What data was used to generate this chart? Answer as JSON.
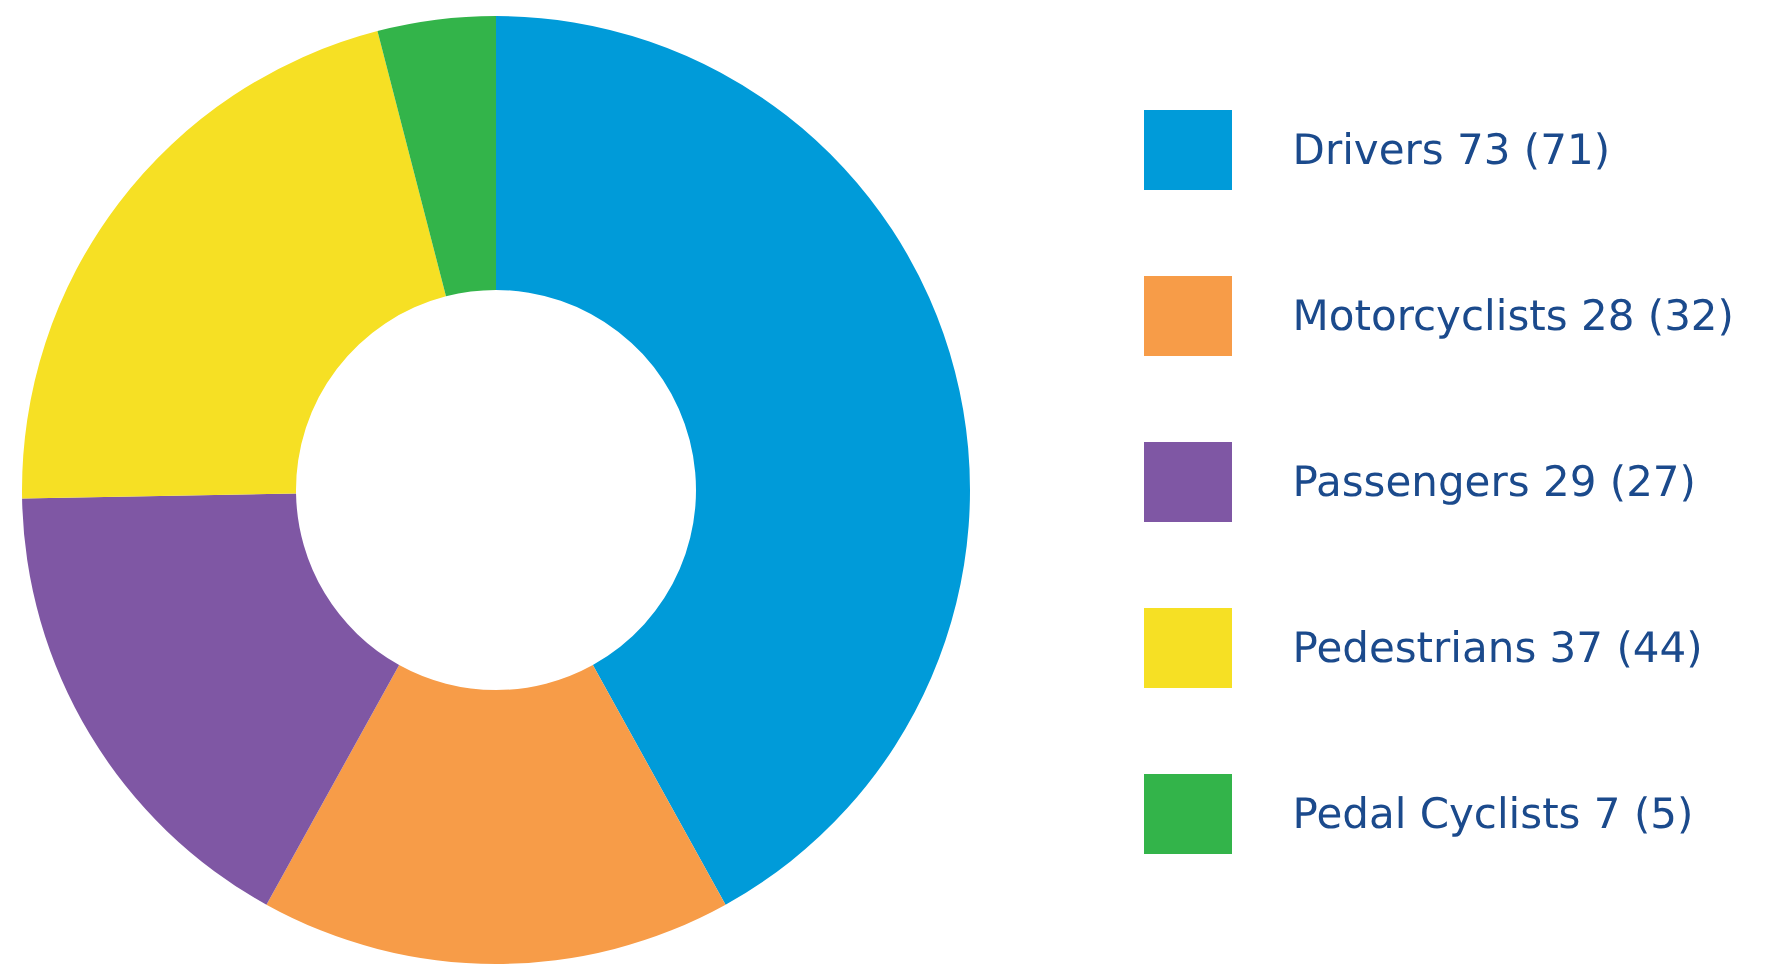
{
  "chart_data": {
    "type": "donut",
    "categories": [
      "Drivers 73 (71)",
      "Motorcyclists 28 (32)",
      "Passengers 29 (27)",
      "Pedestrians 37 (44)",
      "Pedal Cyclists 7 (5)"
    ],
    "values": [
      73,
      28,
      29,
      37,
      7
    ],
    "colors": [
      "#009bd9",
      "#f79c48",
      "#7f57a4",
      "#f6e024",
      "#33b44a"
    ],
    "legend": "right"
  }
}
